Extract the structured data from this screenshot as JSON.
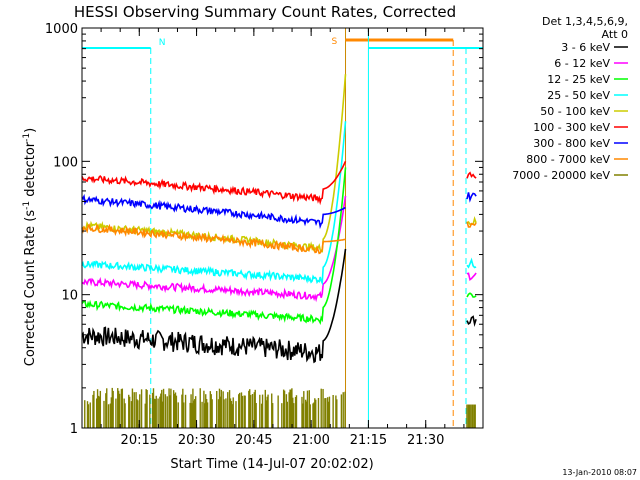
{
  "chart_data": {
    "type": "line",
    "title": "HESSI Observing Summary Count Rates, Corrected",
    "xlabel": "Start Time (14-Jul-07 20:02:02)",
    "ylabel_main": "Corrected Count Rate (s",
    "ylabel_sup1": "-1",
    "ylabel_mid": " detector",
    "ylabel_sup2": "-1",
    "ylabel_end": ")",
    "footer": "13-Jan-2010 08:07",
    "x_range_minutes": [
      20.0,
      21.75
    ],
    "x_ticks": [
      {
        "t": 20.25,
        "label": "20:15"
      },
      {
        "t": 20.5,
        "label": "20:30"
      },
      {
        "t": 20.75,
        "label": "20:45"
      },
      {
        "t": 21.0,
        "label": "21:00"
      },
      {
        "t": 21.25,
        "label": "21:15"
      },
      {
        "t": 21.5,
        "label": "21:30"
      }
    ],
    "y_log": true,
    "y_range": [
      1,
      1000
    ],
    "y_ticks": [
      {
        "v": 1,
        "label": "1"
      },
      {
        "v": 10,
        "label": "10"
      },
      {
        "v": 100,
        "label": "100"
      },
      {
        "v": 1000,
        "label": "1000"
      }
    ],
    "legend_header": [
      "Det 1,3,4,5,6,9,",
      "Att 0"
    ],
    "series": [
      {
        "name": "3 - 6 keV",
        "color": "#000000",
        "base": 5,
        "pre": 4.5,
        "peak": 22,
        "tail": 6.5
      },
      {
        "name": "6 - 12 keV",
        "color": "#ff00ff",
        "base": 12.5,
        "pre": 12,
        "peak": 55,
        "tail": 14
      },
      {
        "name": "12 - 25 keV",
        "color": "#00ff00",
        "base": 8.5,
        "pre": 8,
        "peak": 90,
        "tail": 10
      },
      {
        "name": "25 - 50 keV",
        "color": "#00ffff",
        "base": 17,
        "pre": 16,
        "peak": 200,
        "tail": 17
      },
      {
        "name": "50 - 100 keV",
        "color": "#cccc00",
        "base": 33,
        "pre": 26,
        "peak": 450,
        "tail": 35
      },
      {
        "name": "100 - 300 keV",
        "color": "#ff0000",
        "base": 75,
        "pre": 62,
        "peak": 100,
        "tail": 80
      },
      {
        "name": "300 - 800 keV",
        "color": "#0000ff",
        "base": 52,
        "pre": 40,
        "peak": 45,
        "tail": 55
      },
      {
        "name": "800 - 7000 keV",
        "color": "#ff8800",
        "base": 32,
        "pre": 25,
        "peak": 26,
        "tail": 33
      },
      {
        "name": "7000 - 20000 keV",
        "color": "#808000",
        "base": 1.5,
        "pre": 1.5,
        "peak": 1.5,
        "tail": 1.5
      }
    ],
    "intervals": {
      "night_start": 20.0,
      "night_end": 20.3,
      "night_label": "N",
      "saa_start": 21.4,
      "saa_end": 21.62,
      "saa_label": "S",
      "data_gap_start": 21.15,
      "data_gap_end": 21.67,
      "night2_start": 21.25,
      "night2_end": 21.75
    }
  }
}
